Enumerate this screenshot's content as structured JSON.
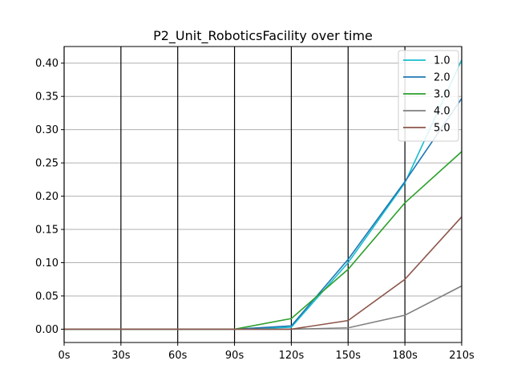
{
  "chart_data": {
    "type": "line",
    "title": "P2_Unit_RoboticsFacility over time",
    "x": [
      "0s",
      "30s",
      "60s",
      "90s",
      "120s",
      "150s",
      "180s",
      "210s"
    ],
    "xlabel": "",
    "ylabel": "",
    "ylim": [
      -0.02,
      0.425
    ],
    "yticks": [
      0.0,
      0.05,
      0.1,
      0.15,
      0.2,
      0.25,
      0.3,
      0.35,
      0.4
    ],
    "ytick_labels": [
      "0.00",
      "0.05",
      "0.10",
      "0.15",
      "0.20",
      "0.25",
      "0.30",
      "0.35",
      "0.40"
    ],
    "grid": {
      "horizontal": true,
      "vertical": true,
      "vertical_color": "#000000",
      "horizontal_color": "#b0b0b0"
    },
    "legend": "top-right",
    "series": [
      {
        "name": "1.0",
        "color": "#17becf",
        "values": [
          0,
          0,
          0,
          0,
          0.003,
          0.1,
          0.22,
          0.405
        ]
      },
      {
        "name": "2.0",
        "color": "#1f77b4",
        "values": [
          0,
          0,
          0,
          0,
          0.005,
          0.105,
          0.222,
          0.347
        ]
      },
      {
        "name": "3.0",
        "color": "#2ca02c",
        "values": [
          0,
          0,
          0,
          0,
          0.016,
          0.09,
          0.19,
          0.267
        ]
      },
      {
        "name": "4.0",
        "color": "#7f7f7f",
        "values": [
          0,
          0,
          0,
          0,
          0,
          0.002,
          0.021,
          0.065
        ]
      },
      {
        "name": "5.0",
        "color": "#8c564b",
        "values": [
          0,
          0,
          0,
          0,
          0,
          0.013,
          0.075,
          0.169
        ]
      }
    ]
  }
}
